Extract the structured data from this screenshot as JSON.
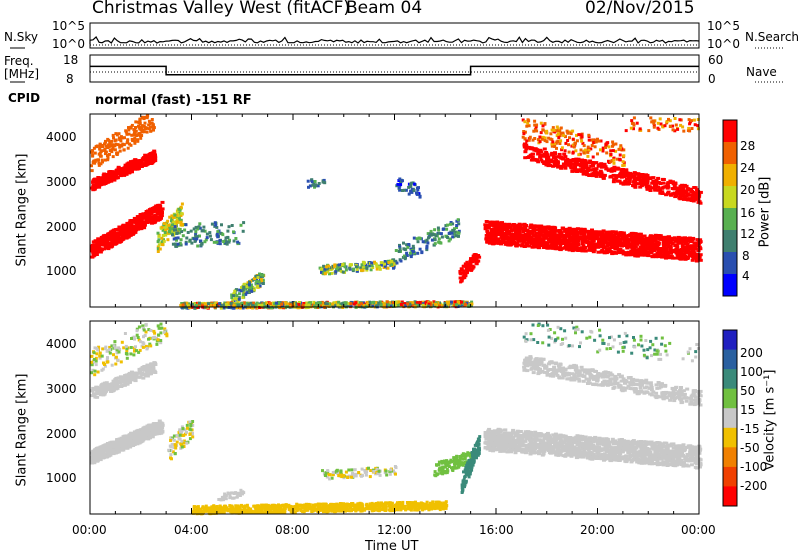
{
  "header": {
    "title": "Christmas Valley West (fitACF)",
    "beam": "Beam 04",
    "date": "02/Nov/2015"
  },
  "noise_panel": {
    "left_label": "N.Sky",
    "right_label": "N.Search",
    "left_ticks": [
      "10^5",
      "10^0"
    ],
    "right_ticks": [
      "10^5",
      "10^0"
    ]
  },
  "freq_panel": {
    "left_label_1": "Freq.",
    "left_label_2": "[MHz]",
    "right_label": "Nave",
    "left_ticks": [
      "18",
      "8"
    ],
    "right_ticks": [
      "60",
      "0"
    ],
    "freq_levels": [
      {
        "from_hour": 0,
        "to_hour": 3.0,
        "mhz": 14
      },
      {
        "from_hour": 3.0,
        "to_hour": 15.0,
        "mhz": 10
      },
      {
        "from_hour": 15.0,
        "to_hour": 24,
        "mhz": 14
      }
    ]
  },
  "cpid": {
    "label": "CPID",
    "value": "normal (fast) -151 RF"
  },
  "chart_data": [
    {
      "type": "heatmap",
      "name": "power",
      "ylabel": "Slant Range [km]",
      "yticks": [
        "1000",
        "2000",
        "3000",
        "4000"
      ],
      "ylim": [
        200,
        4500
      ],
      "xlim": [
        0,
        24
      ],
      "colorbar_label": "Power [dB]",
      "colorbar_ticks": [
        "4",
        "8",
        "12",
        "16",
        "20",
        "24",
        "28"
      ],
      "colorbar_colors": [
        "#0000ff",
        "#2a4fb0",
        "#3f7f6f",
        "#58b050",
        "#c8d820",
        "#f0b000",
        "#f06000",
        "#ff0000"
      ]
    },
    {
      "type": "heatmap",
      "name": "velocity",
      "ylabel": "Slant Range [km]",
      "yticks": [
        "1000",
        "2000",
        "3000",
        "4000"
      ],
      "ylim": [
        200,
        4500
      ],
      "xlim": [
        0,
        24
      ],
      "colorbar_label": "Velocity [m s⁻¹]",
      "colorbar_ticks": [
        "200",
        "100",
        "50",
        "15",
        "-15",
        "-50",
        "-100",
        "-200"
      ],
      "colorbar_colors": [
        "#2020c0",
        "#2a60a0",
        "#3a8a7a",
        "#70c040",
        "#c8c8c8",
        "#f0c000",
        "#f08000",
        "#f04000",
        "#ff0000"
      ]
    }
  ],
  "xaxis": {
    "label": "Time UT",
    "ticks": [
      "00:00",
      "04:00",
      "08:00",
      "12:00",
      "16:00",
      "20:00",
      "00:00"
    ]
  }
}
